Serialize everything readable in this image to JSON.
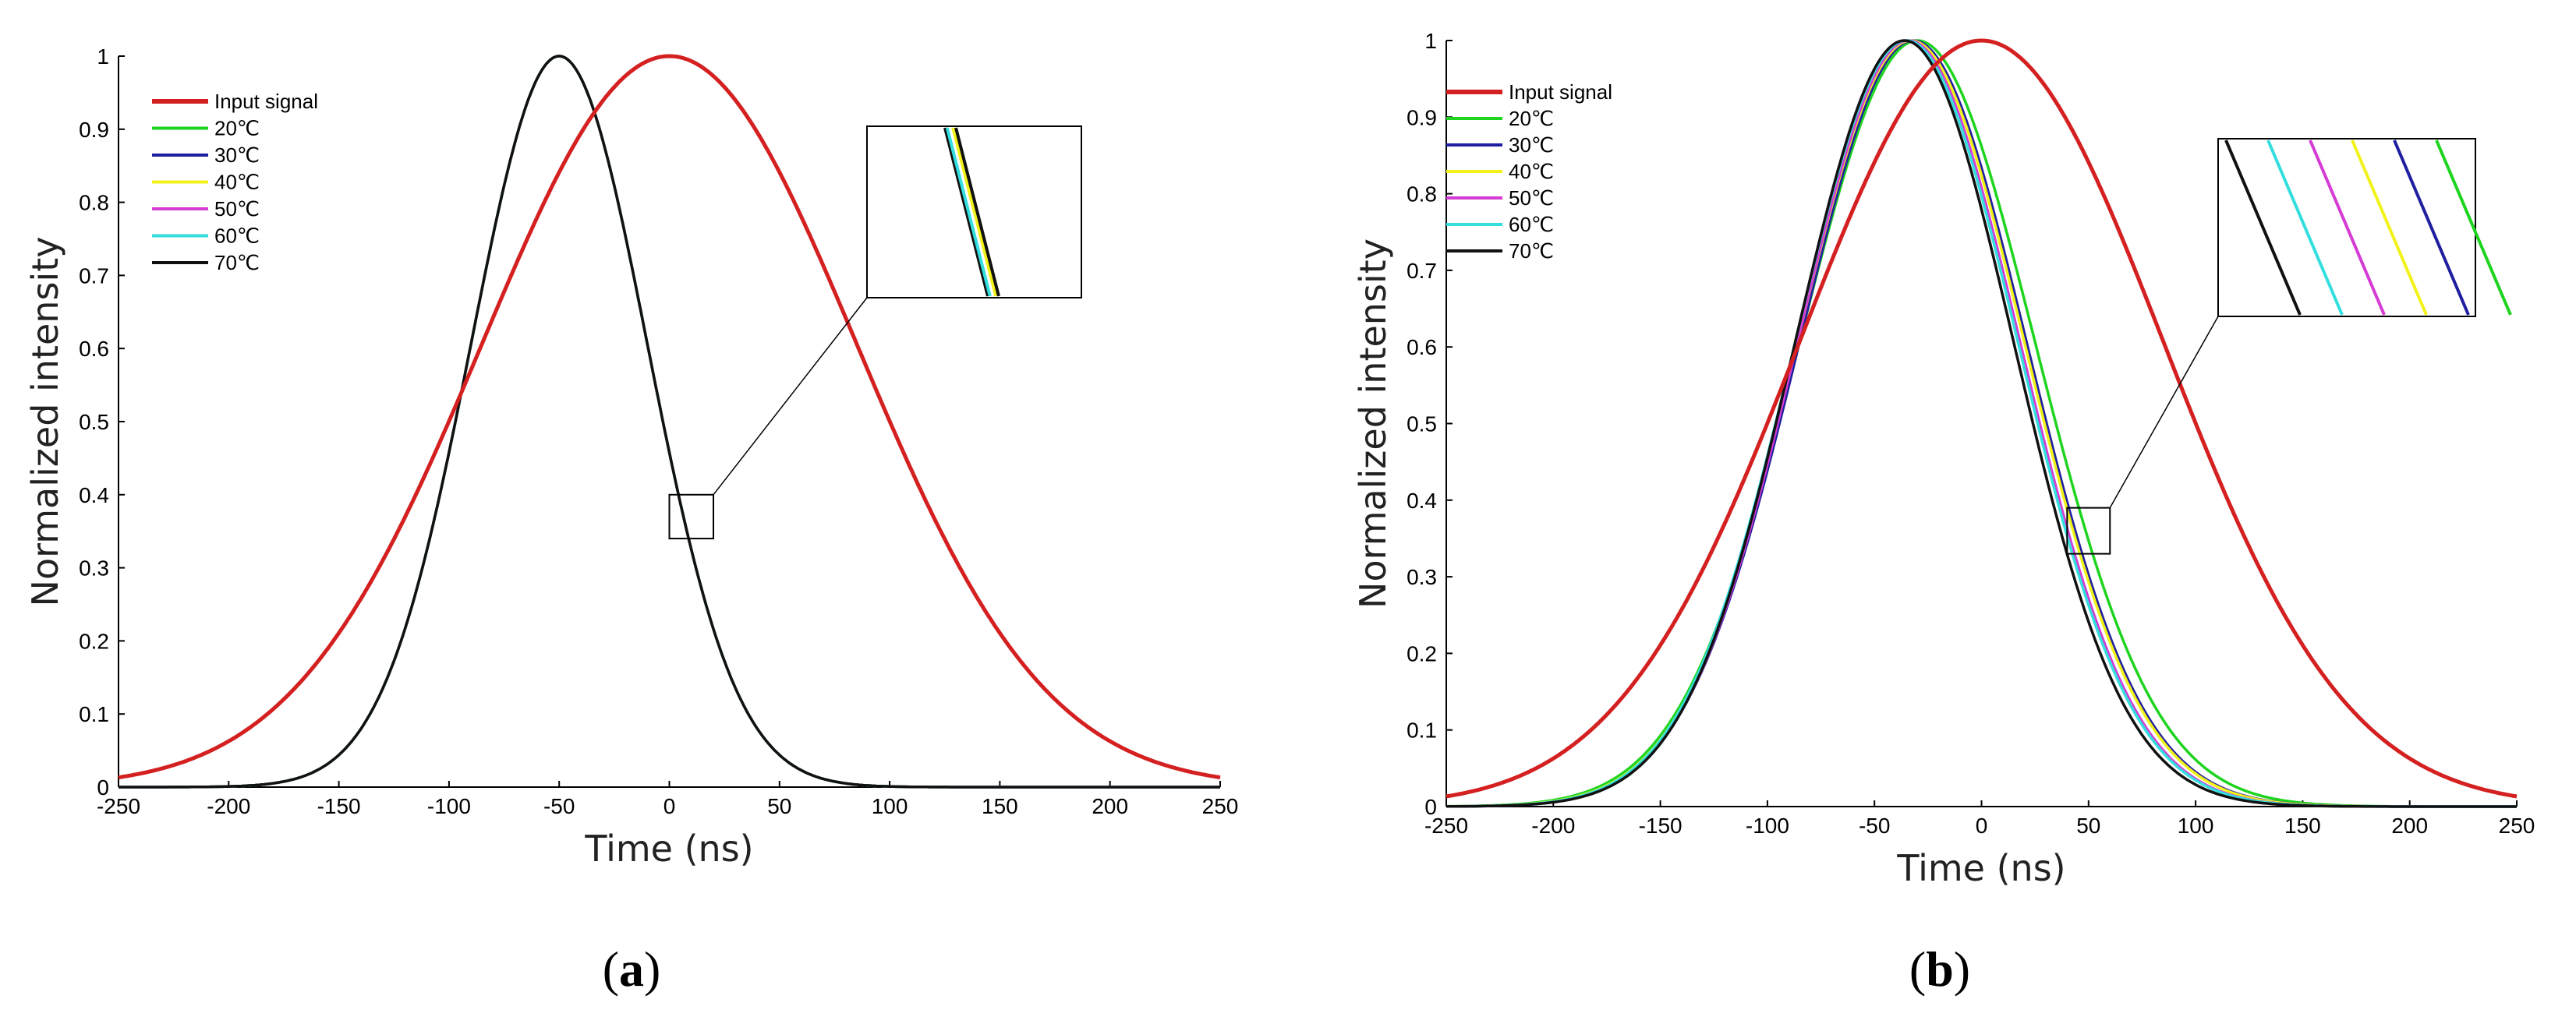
{
  "figure": {
    "captions": [
      {
        "open": "(",
        "letter": "a",
        "close": ")"
      },
      {
        "open": "(",
        "letter": "b",
        "close": ")"
      }
    ]
  },
  "colors": {
    "input": "#d42020",
    "t20": "#1fd41f",
    "t30": "#1f1fa0",
    "t40": "#f2f21a",
    "t50": "#d43cd4",
    "t60": "#34dede",
    "t70": "#111111"
  },
  "chart_data": [
    {
      "type": "line",
      "panel": "a",
      "xlabel": "Time (ns)",
      "ylabel": "Normalized intensity",
      "xlim": [
        -250,
        250
      ],
      "ylim": [
        0,
        1
      ],
      "xticks": [
        -250,
        -200,
        -150,
        -100,
        -50,
        0,
        50,
        100,
        150,
        200,
        250
      ],
      "yticks": [
        0,
        0.1,
        0.2,
        0.3,
        0.4,
        0.5,
        0.6,
        0.7,
        0.8,
        0.9,
        1
      ],
      "series": [
        {
          "name": "Input signal",
          "color_key": "input",
          "center": 0,
          "sigma": 85
        },
        {
          "name": "20℃",
          "color_key": "t20",
          "center": -50,
          "sigma": 40
        },
        {
          "name": "30℃",
          "color_key": "t30",
          "center": -50,
          "sigma": 40
        },
        {
          "name": "40℃",
          "color_key": "t40",
          "center": -50,
          "sigma": 40
        },
        {
          "name": "50℃",
          "color_key": "t50",
          "center": -50,
          "sigma": 40
        },
        {
          "name": "60℃",
          "color_key": "t60",
          "center": -50,
          "sigma": 40
        },
        {
          "name": "70℃",
          "color_key": "t70",
          "center": -50,
          "sigma": 40
        }
      ],
      "zoom": {
        "x_range": [
          0,
          20
        ],
        "y_range": [
          0.34,
          0.4
        ],
        "inset_lines": [
          {
            "color_key": "t70",
            "offset": 0
          },
          {
            "color_key": "t60",
            "offset": 0.6
          },
          {
            "color_key": "t40",
            "offset": 2.2
          },
          {
            "color_key": "t70",
            "offset": 3.0
          }
        ]
      }
    },
    {
      "type": "line",
      "panel": "b",
      "xlabel": "Time (ns)",
      "ylabel": "Normalized intensity",
      "xlim": [
        -250,
        250
      ],
      "ylim": [
        0,
        1
      ],
      "xticks": [
        -250,
        -200,
        -150,
        -100,
        -50,
        0,
        50,
        100,
        150,
        200,
        250
      ],
      "yticks": [
        0,
        0.1,
        0.2,
        0.3,
        0.4,
        0.5,
        0.6,
        0.7,
        0.8,
        0.9,
        1
      ],
      "series": [
        {
          "name": "Input signal",
          "color_key": "input",
          "center": 0,
          "sigma": 85
        },
        {
          "name": "20℃",
          "color_key": "t20",
          "center": -30,
          "sigma": 55
        },
        {
          "name": "30℃",
          "color_key": "t30",
          "center": -32,
          "sigma": 53
        },
        {
          "name": "40℃",
          "color_key": "t40",
          "center": -33,
          "sigma": 53
        },
        {
          "name": "50℃",
          "color_key": "t50",
          "center": -34,
          "sigma": 52
        },
        {
          "name": "60℃",
          "color_key": "t60",
          "center": -35,
          "sigma": 52
        },
        {
          "name": "70℃",
          "color_key": "t70",
          "center": -36,
          "sigma": 51
        }
      ],
      "zoom": {
        "x_range": [
          40,
          60
        ],
        "y_range": [
          0.33,
          0.39
        ],
        "inset_lines": [
          {
            "color_key": "t70",
            "offset": 0
          },
          {
            "color_key": "t60",
            "offset": 1
          },
          {
            "color_key": "t50",
            "offset": 2
          },
          {
            "color_key": "t40",
            "offset": 3
          },
          {
            "color_key": "t30",
            "offset": 4
          },
          {
            "color_key": "t20",
            "offset": 5
          }
        ]
      }
    }
  ]
}
